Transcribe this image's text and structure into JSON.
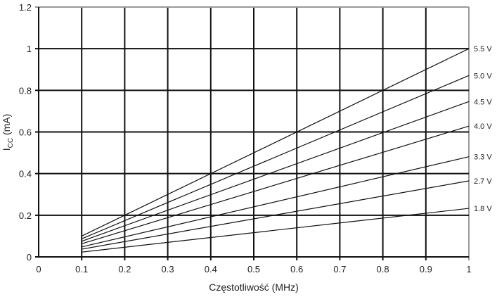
{
  "chart_data": {
    "type": "line",
    "title": "",
    "xlabel": "Częstotliwość (MHz)",
    "ylabel_main": "I",
    "ylabel_sub": "CC",
    "ylabel_unit": " (mA)",
    "xlim": [
      0,
      1
    ],
    "ylim": [
      0,
      1.2
    ],
    "grid": true,
    "xticks": [
      "0",
      "0.1",
      "0.2",
      "0.3",
      "0.4",
      "0.5",
      "0.6",
      "0.7",
      "0.8",
      "0.9",
      "1"
    ],
    "yticks": [
      "0",
      "0.2",
      "0.4",
      "0.6",
      "0.8",
      "1",
      "1.2"
    ],
    "x": [
      0.1,
      1
    ],
    "series": [
      {
        "name": "5.5 V",
        "values": [
          0.1,
          1.0
        ]
      },
      {
        "name": "5.0 V",
        "values": [
          0.087,
          0.871
        ]
      },
      {
        "name": "4.5 V",
        "values": [
          0.075,
          0.746
        ]
      },
      {
        "name": "4.0 V",
        "values": [
          0.063,
          0.628
        ]
      },
      {
        "name": "3.3 V",
        "values": [
          0.048,
          0.481
        ]
      },
      {
        "name": "2.7 V",
        "values": [
          0.037,
          0.365
        ]
      },
      {
        "name": "1.8 V",
        "values": [
          0.023,
          0.233
        ]
      }
    ],
    "legend": "right, inline labels"
  }
}
